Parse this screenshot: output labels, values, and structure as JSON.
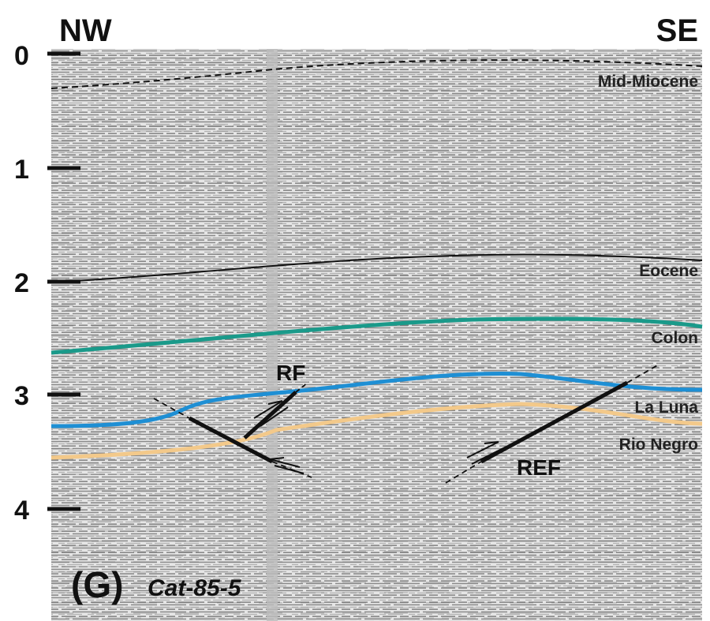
{
  "header": {
    "left": "NW",
    "right": "SE"
  },
  "axis": {
    "ticks": [
      0,
      1,
      2,
      3,
      4
    ]
  },
  "horizons": [
    {
      "label": "Mid-Miocene"
    },
    {
      "label": "Eocene"
    },
    {
      "label": "Colon"
    },
    {
      "label": "La Luna"
    },
    {
      "label": "Rio Negro"
    }
  ],
  "faults": [
    {
      "label": "RF"
    },
    {
      "label": "REF"
    }
  ],
  "panel": {
    "letter": "(G)",
    "line": "Cat-85-5"
  }
}
